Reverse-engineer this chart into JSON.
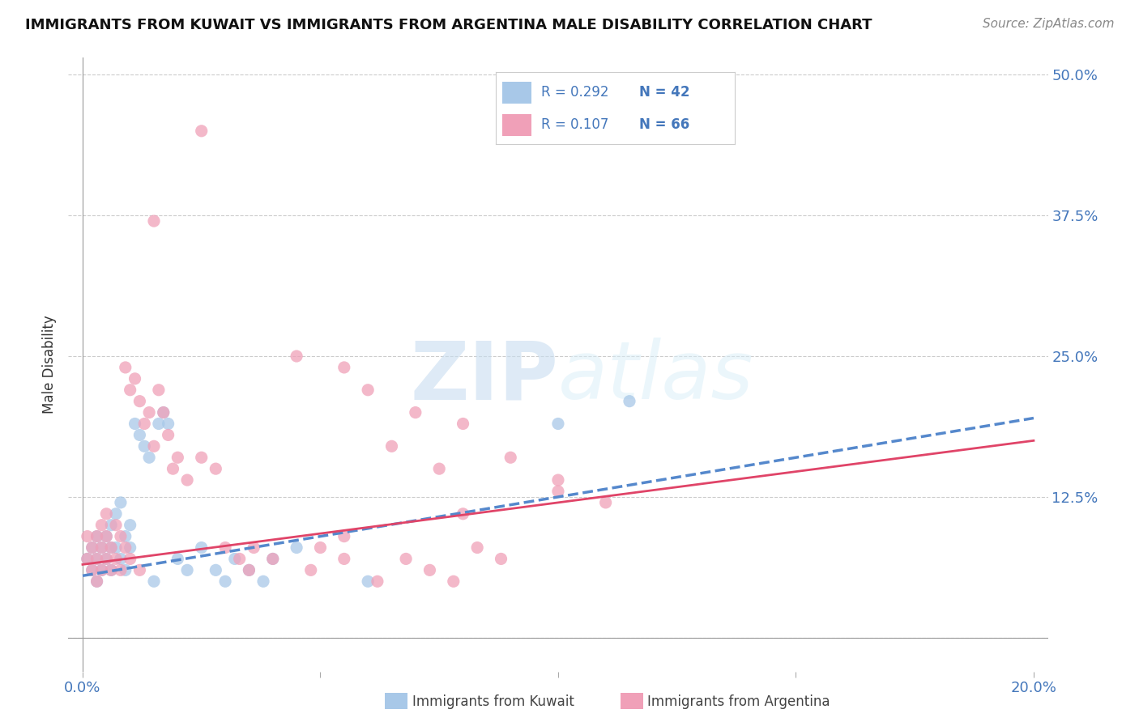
{
  "title": "IMMIGRANTS FROM KUWAIT VS IMMIGRANTS FROM ARGENTINA MALE DISABILITY CORRELATION CHART",
  "source": "Source: ZipAtlas.com",
  "xlabel": "",
  "ylabel": "Male Disability",
  "xlim": [
    0.0,
    0.2
  ],
  "ylim": [
    0.0,
    0.5
  ],
  "yticks": [
    0.0,
    0.125,
    0.25,
    0.375,
    0.5
  ],
  "ytick_labels": [
    "",
    "12.5%",
    "25.0%",
    "37.5%",
    "50.0%"
  ],
  "xticks": [
    0.0,
    0.05,
    0.1,
    0.15,
    0.2
  ],
  "xtick_labels": [
    "0.0%",
    "",
    "",
    "",
    "20.0%"
  ],
  "legend_r1": "R = 0.292",
  "legend_n1": "N = 42",
  "legend_r2": "R = 0.107",
  "legend_n2": "N = 66",
  "kuwait_color": "#a8c8e8",
  "argentina_color": "#f0a0b8",
  "kuwait_line_color": "#5588cc",
  "argentina_line_color": "#e04468",
  "text_color": "#4477bb",
  "label_color": "#333333",
  "background_color": "#ffffff",
  "kuwait_trendline_x": [
    0.0,
    0.2
  ],
  "kuwait_trendline_y": [
    0.055,
    0.195
  ],
  "argentina_trendline_x": [
    0.0,
    0.2
  ],
  "argentina_trendline_y": [
    0.065,
    0.175
  ],
  "kuwait_x": [
    0.001,
    0.002,
    0.002,
    0.003,
    0.003,
    0.003,
    0.004,
    0.004,
    0.005,
    0.005,
    0.006,
    0.006,
    0.006,
    0.007,
    0.007,
    0.008,
    0.008,
    0.009,
    0.009,
    0.01,
    0.01,
    0.011,
    0.012,
    0.013,
    0.014,
    0.015,
    0.016,
    0.017,
    0.018,
    0.02,
    0.022,
    0.025,
    0.028,
    0.03,
    0.032,
    0.035,
    0.038,
    0.04,
    0.045,
    0.06,
    0.1,
    0.115
  ],
  "kuwait_y": [
    0.07,
    0.06,
    0.08,
    0.09,
    0.07,
    0.05,
    0.06,
    0.08,
    0.07,
    0.09,
    0.08,
    0.06,
    0.1,
    0.11,
    0.08,
    0.12,
    0.07,
    0.09,
    0.06,
    0.1,
    0.08,
    0.19,
    0.18,
    0.17,
    0.16,
    0.05,
    0.19,
    0.2,
    0.19,
    0.07,
    0.06,
    0.08,
    0.06,
    0.05,
    0.07,
    0.06,
    0.05,
    0.07,
    0.08,
    0.05,
    0.19,
    0.21
  ],
  "argentina_x": [
    0.001,
    0.001,
    0.002,
    0.002,
    0.003,
    0.003,
    0.003,
    0.004,
    0.004,
    0.004,
    0.005,
    0.005,
    0.005,
    0.006,
    0.006,
    0.007,
    0.007,
    0.008,
    0.008,
    0.009,
    0.009,
    0.01,
    0.01,
    0.011,
    0.012,
    0.013,
    0.014,
    0.015,
    0.016,
    0.017,
    0.018,
    0.019,
    0.02,
    0.022,
    0.025,
    0.028,
    0.03,
    0.033,
    0.036,
    0.04,
    0.045,
    0.05,
    0.055,
    0.06,
    0.065,
    0.07,
    0.075,
    0.08,
    0.09,
    0.1,
    0.035,
    0.025,
    0.015,
    0.012,
    0.048,
    0.055,
    0.062,
    0.068,
    0.073,
    0.078,
    0.083,
    0.088,
    0.1,
    0.11,
    0.055,
    0.08
  ],
  "argentina_y": [
    0.07,
    0.09,
    0.08,
    0.06,
    0.07,
    0.09,
    0.05,
    0.08,
    0.1,
    0.06,
    0.07,
    0.09,
    0.11,
    0.08,
    0.06,
    0.1,
    0.07,
    0.09,
    0.06,
    0.08,
    0.24,
    0.22,
    0.07,
    0.23,
    0.21,
    0.19,
    0.2,
    0.17,
    0.22,
    0.2,
    0.18,
    0.15,
    0.16,
    0.14,
    0.16,
    0.15,
    0.08,
    0.07,
    0.08,
    0.07,
    0.25,
    0.08,
    0.24,
    0.22,
    0.17,
    0.2,
    0.15,
    0.19,
    0.16,
    0.14,
    0.06,
    0.45,
    0.37,
    0.06,
    0.06,
    0.07,
    0.05,
    0.07,
    0.06,
    0.05,
    0.08,
    0.07,
    0.13,
    0.12,
    0.09,
    0.11
  ]
}
